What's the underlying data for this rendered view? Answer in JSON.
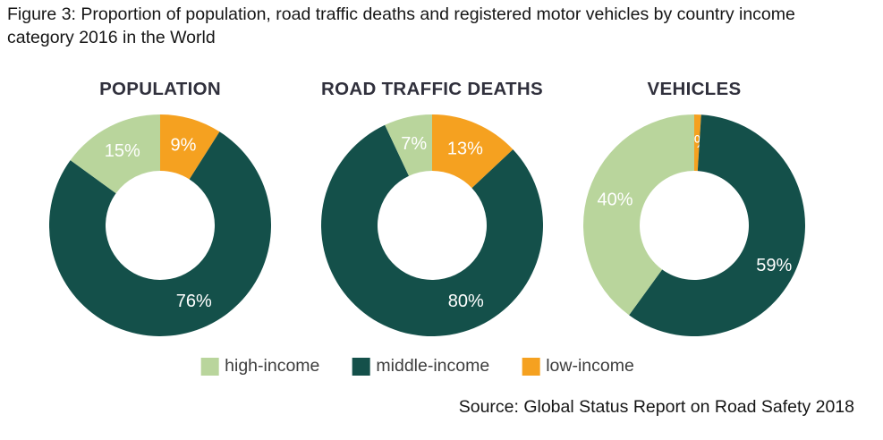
{
  "figure": {
    "title": "Figure 3: Proportion of population, road traffic deaths and registered motor vehicles by country income category 2016 in the World",
    "source": "Source: Global Status Report on Road Safety 2018"
  },
  "colors": {
    "high-income": "#b9d59c",
    "middle-income": "#14504a",
    "low-income": "#f5a120",
    "chart_title_text": "#30303c",
    "slice_label_text": "#ffffff",
    "legend_text": "#3d3d3d",
    "background": "#ffffff"
  },
  "legend": {
    "position": "bottom",
    "items": [
      {
        "label": "high-income",
        "color": "#b9d59c"
      },
      {
        "label": "middle-income",
        "color": "#14504a"
      },
      {
        "label": "low-income",
        "color": "#f5a120"
      }
    ]
  },
  "chart_data": [
    {
      "type": "pie",
      "subtype": "donut",
      "title": "POPULATION",
      "unit": "%",
      "slices_clockwise_from_top": [
        {
          "category": "low-income",
          "value": 9,
          "label": "9%"
        },
        {
          "category": "middle-income",
          "value": 76,
          "label": "76%"
        },
        {
          "category": "high-income",
          "value": 15,
          "label": "15%"
        }
      ]
    },
    {
      "type": "pie",
      "subtype": "donut",
      "title": "ROAD TRAFFIC DEATHS",
      "unit": "%",
      "slices_clockwise_from_top": [
        {
          "category": "low-income",
          "value": 13,
          "label": "13%"
        },
        {
          "category": "middle-income",
          "value": 80,
          "label": "80%"
        },
        {
          "category": "high-income",
          "value": 7,
          "label": "7%"
        }
      ]
    },
    {
      "type": "pie",
      "subtype": "donut",
      "title": "VEHICLES",
      "unit": "%",
      "slices_clockwise_from_top": [
        {
          "category": "low-income",
          "value": 1,
          "label": "1%"
        },
        {
          "category": "middle-income",
          "value": 59,
          "label": "59%"
        },
        {
          "category": "high-income",
          "value": 40,
          "label": "40%"
        }
      ]
    }
  ]
}
